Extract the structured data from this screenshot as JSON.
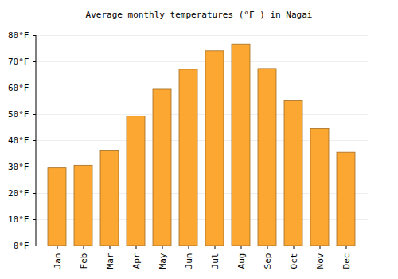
{
  "chart_data": {
    "type": "bar",
    "title": "Average monthly temperatures (°F ) in Nagai",
    "categories": [
      "Jan",
      "Feb",
      "Mar",
      "Apr",
      "May",
      "Jun",
      "Jul",
      "Aug",
      "Sep",
      "Oct",
      "Nov",
      "Dec"
    ],
    "values": [
      29.5,
      30.5,
      36.2,
      49.2,
      59.4,
      67.0,
      74.0,
      76.6,
      67.3,
      55.0,
      44.4,
      35.4
    ],
    "color": "#fba732",
    "ylim": [
      0,
      80
    ],
    "yticks": [
      {
        "value": 0,
        "label": "0°F"
      },
      {
        "value": 10,
        "label": "10°F"
      },
      {
        "value": 20,
        "label": "20°F"
      },
      {
        "value": 30,
        "label": "30°F"
      },
      {
        "value": 40,
        "label": "40°F"
      },
      {
        "value": 50,
        "label": "50°F"
      },
      {
        "value": 60,
        "label": "60°F"
      },
      {
        "value": 70,
        "label": "70°F"
      },
      {
        "value": 80,
        "label": "80°F"
      }
    ],
    "grid": true
  }
}
